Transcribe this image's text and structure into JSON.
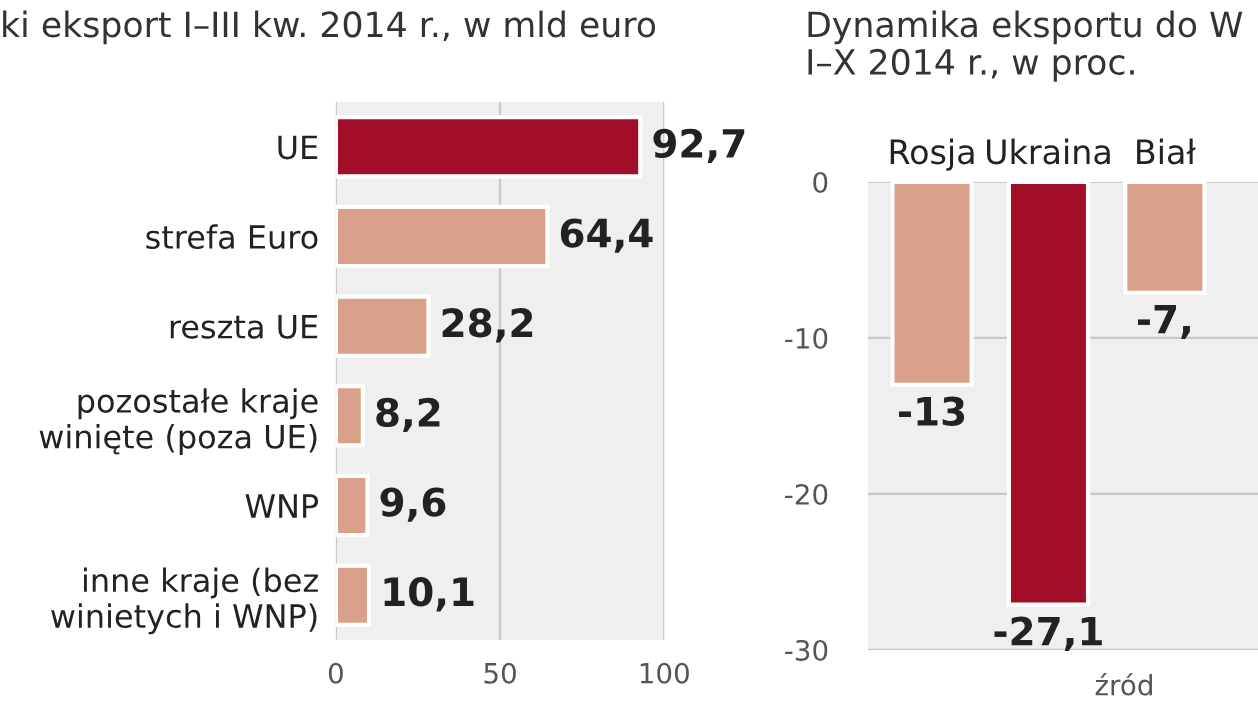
{
  "chart_data": [
    {
      "type": "bar",
      "orientation": "horizontal",
      "title": "ki eksport I–III kw. 2014 r., w mld euro",
      "categories": [
        "UE",
        "strefa Euro",
        "reszta UE",
        "pozostałe kraje\nwinięte (poza UE)",
        "WNP",
        "inne kraje (bez\nwinietych i WNP)"
      ],
      "values": [
        92.7,
        64.4,
        28.2,
        8.2,
        9.6,
        10.1
      ],
      "colors": [
        "#a20d28",
        "#d9a08a",
        "#d9a08a",
        "#d9a08a",
        "#d9a08a",
        "#d9a08a"
      ],
      "value_labels": [
        "92,7",
        "64,4",
        "28,2",
        "8,2",
        "9,6",
        "10,1"
      ],
      "xlim": [
        0,
        100
      ],
      "xticks": [
        0,
        50,
        100
      ],
      "grid": "x"
    },
    {
      "type": "bar",
      "title": "Dynamika eksportu do W\nI–X 2014 r., w proc.",
      "categories": [
        "Rosja",
        "Ukraina",
        "Biał"
      ],
      "values": [
        -13,
        -27.1,
        -7.1
      ],
      "colors": [
        "#d9a08a",
        "#a20d28",
        "#d9a08a"
      ],
      "value_labels": [
        "-13",
        "-27,1",
        "-7,"
      ],
      "ylim": [
        -30,
        0
      ],
      "yticks": [
        -30,
        -20,
        -10,
        0
      ],
      "grid": "y",
      "annotations": [
        "źród"
      ]
    }
  ]
}
